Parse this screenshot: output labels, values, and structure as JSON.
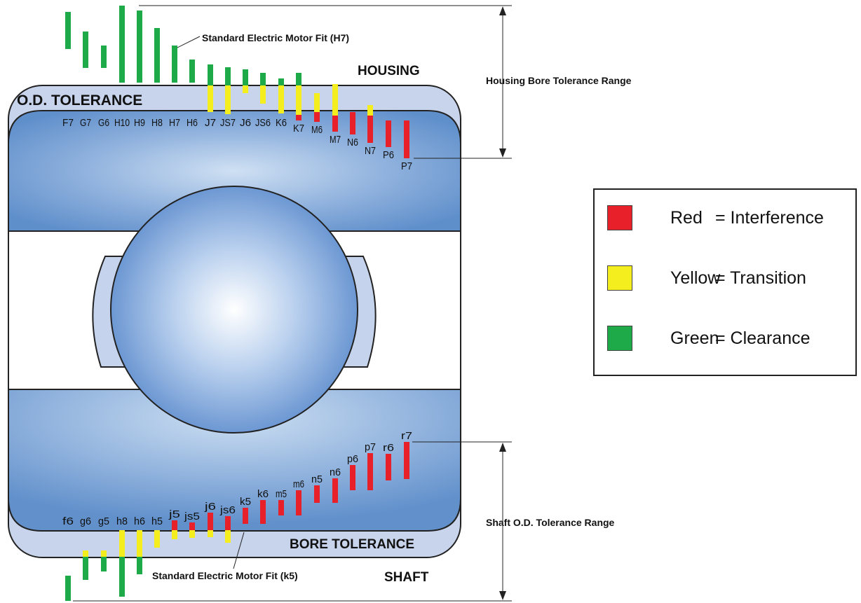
{
  "labels": {
    "housing": "HOUSING",
    "od_tolerance": "O.D. TOLERANCE",
    "bore_tolerance": "BORE TOLERANCE",
    "shaft": "SHAFT",
    "housing_range": "Housing Bore Tolerance Range",
    "shaft_range": "Shaft O.D. Tolerance Range",
    "std_fit_h7": "Standard Electric Motor Fit (H7)",
    "std_fit_k5": "Standard Electric Motor Fit (k5)"
  },
  "colors": {
    "red": "#e8202a",
    "yellow": "#f5ee1f",
    "green": "#1faa4a"
  },
  "legend": [
    {
      "swatch": "red",
      "name": "Red",
      "desc": "= Interference"
    },
    {
      "swatch": "yellow",
      "name": "Yellow",
      "desc": "= Transition"
    },
    {
      "swatch": "green",
      "name": "Green",
      "desc": "= Clearance"
    }
  ],
  "housing_fits": [
    {
      "label": "F7",
      "segments": [
        [
          "green",
          17,
          70
        ]
      ]
    },
    {
      "label": "G7",
      "segments": [
        [
          "green",
          45,
          97
        ]
      ]
    },
    {
      "label": "G6",
      "segments": [
        [
          "green",
          65,
          97
        ]
      ]
    },
    {
      "label": "H10",
      "segments": [
        [
          "green",
          8,
          118
        ]
      ]
    },
    {
      "label": "H9",
      "segments": [
        [
          "green",
          15,
          118
        ]
      ]
    },
    {
      "label": "H8",
      "segments": [
        [
          "green",
          40,
          118
        ]
      ]
    },
    {
      "label": "H7",
      "segments": [
        [
          "green",
          65,
          118
        ]
      ]
    },
    {
      "label": "H6",
      "segments": [
        [
          "green",
          85,
          118
        ]
      ]
    },
    {
      "label": "J7",
      "segments": [
        [
          "green",
          92,
          122
        ],
        [
          "yellow",
          122,
          160
        ]
      ]
    },
    {
      "label": "JS7",
      "segments": [
        [
          "green",
          96,
          122
        ],
        [
          "yellow",
          122,
          163
        ]
      ]
    },
    {
      "label": "J6",
      "segments": [
        [
          "green",
          99,
          122
        ],
        [
          "yellow",
          122,
          133
        ]
      ]
    },
    {
      "label": "JS6",
      "segments": [
        [
          "green",
          104,
          122
        ],
        [
          "yellow",
          122,
          148
        ]
      ]
    },
    {
      "label": "K6",
      "segments": [
        [
          "green",
          112,
          122
        ],
        [
          "yellow",
          122,
          162
        ]
      ]
    },
    {
      "label": "K7",
      "segments": [
        [
          "green",
          104,
          122
        ],
        [
          "yellow",
          122,
          164
        ],
        [
          "red",
          164,
          172
        ]
      ]
    },
    {
      "label": "M6",
      "segments": [
        [
          "yellow",
          133,
          160
        ],
        [
          "red",
          160,
          174
        ]
      ]
    },
    {
      "label": "M7",
      "segments": [
        [
          "yellow",
          120,
          165
        ],
        [
          "red",
          165,
          188
        ]
      ]
    },
    {
      "label": "N6",
      "segments": [
        [
          "red",
          160,
          192
        ]
      ]
    },
    {
      "label": "N7",
      "segments": [
        [
          "yellow",
          150,
          165
        ],
        [
          "red",
          165,
          204
        ]
      ]
    },
    {
      "label": "P6",
      "segments": [
        [
          "red",
          172,
          210
        ]
      ]
    },
    {
      "label": "P7",
      "segments": [
        [
          "red",
          172,
          226
        ]
      ]
    }
  ],
  "shaft_fits": [
    {
      "label": "f6",
      "segments": [
        [
          "green",
          822,
          858
        ]
      ]
    },
    {
      "label": "g6",
      "segments": [
        [
          "yellow",
          786,
          795
        ],
        [
          "green",
          795,
          828
        ]
      ]
    },
    {
      "label": "g5",
      "segments": [
        [
          "yellow",
          786,
          795
        ],
        [
          "green",
          795,
          816
        ]
      ]
    },
    {
      "label": "h8",
      "segments": [
        [
          "yellow",
          757,
          795
        ],
        [
          "green",
          795,
          852
        ]
      ]
    },
    {
      "label": "h6",
      "segments": [
        [
          "yellow",
          757,
          795
        ],
        [
          "green",
          795,
          820
        ]
      ]
    },
    {
      "label": "h5",
      "segments": [
        [
          "yellow",
          757,
          782
        ]
      ]
    },
    {
      "label": "j5",
      "segments": [
        [
          "red",
          743,
          757
        ],
        [
          "yellow",
          757,
          770
        ]
      ]
    },
    {
      "label": "js5",
      "segments": [
        [
          "red",
          746,
          757
        ],
        [
          "yellow",
          757,
          768
        ]
      ]
    },
    {
      "label": "j6",
      "segments": [
        [
          "red",
          732,
          757
        ],
        [
          "yellow",
          757,
          767
        ]
      ]
    },
    {
      "label": "js6",
      "segments": [
        [
          "red",
          737,
          757
        ],
        [
          "yellow",
          757,
          775
        ]
      ]
    },
    {
      "label": "k5",
      "segments": [
        [
          "red",
          725,
          748
        ]
      ]
    },
    {
      "label": "k6",
      "segments": [
        [
          "red",
          714,
          748
        ]
      ]
    },
    {
      "label": "m5",
      "segments": [
        [
          "red",
          714,
          736
        ]
      ]
    },
    {
      "label": "m6",
      "segments": [
        [
          "red",
          700,
          736
        ]
      ]
    },
    {
      "label": "n5",
      "segments": [
        [
          "red",
          693,
          718
        ]
      ]
    },
    {
      "label": "n6",
      "segments": [
        [
          "red",
          683,
          718
        ]
      ]
    },
    {
      "label": "p6",
      "segments": [
        [
          "red",
          664,
          700
        ]
      ]
    },
    {
      "label": "p7",
      "segments": [
        [
          "red",
          647,
          700
        ]
      ]
    },
    {
      "label": "r6",
      "segments": [
        [
          "red",
          648,
          686
        ]
      ]
    },
    {
      "label": "r7",
      "segments": [
        [
          "red",
          631,
          684
        ]
      ]
    }
  ]
}
